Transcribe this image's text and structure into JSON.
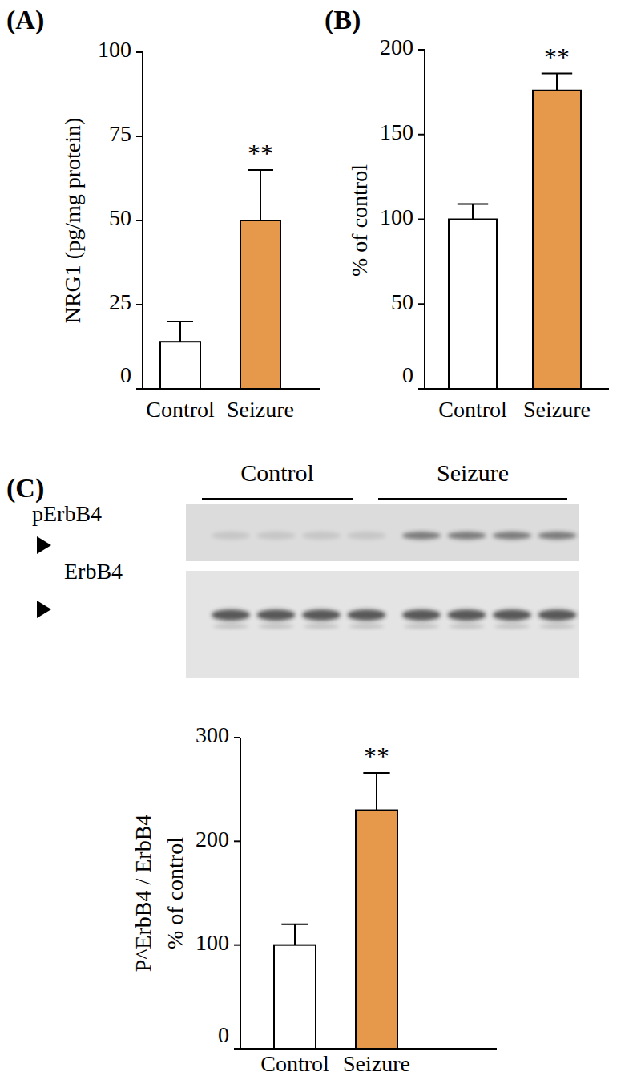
{
  "chart_data": [
    {
      "type": "bar",
      "title": "(A)",
      "y_label": "NRG1 (pg/mg protein)",
      "categories": [
        "Control",
        "Seizure"
      ],
      "values": [
        14,
        50
      ],
      "errors": [
        6,
        15
      ],
      "colors": [
        "#ffffff",
        "#e6994a"
      ],
      "ylim": [
        0,
        100
      ],
      "yticks": [
        0,
        25,
        50,
        75,
        100
      ],
      "annotations": [
        {
          "category": "Seizure",
          "text": "**"
        }
      ]
    },
    {
      "type": "bar",
      "title": "(B)",
      "y_label": "% of control",
      "categories": [
        "Control",
        "Seizure"
      ],
      "values": [
        100,
        176
      ],
      "errors": [
        9,
        10
      ],
      "colors": [
        "#ffffff",
        "#e6994a"
      ],
      "ylim": [
        0,
        200
      ],
      "yticks": [
        0,
        50,
        100,
        150,
        200
      ],
      "annotations": [
        {
          "category": "Seizure",
          "text": "**"
        }
      ]
    },
    {
      "type": "bar",
      "title": "(C)",
      "y_label": [
        "P^ErbB4 / ErbB4",
        "% of control"
      ],
      "categories": [
        "Control",
        "Seizure"
      ],
      "values": [
        100,
        230
      ],
      "errors": [
        20,
        36
      ],
      "colors": [
        "#ffffff",
        "#e6994a"
      ],
      "ylim": [
        0,
        300
      ],
      "yticks": [
        0,
        100,
        200,
        300
      ],
      "annotations": [
        {
          "category": "Seizure",
          "text": "**"
        }
      ]
    }
  ],
  "blot": {
    "groups": [
      "Control",
      "Seizure"
    ],
    "rows": [
      "pErbB4",
      "ErbB4"
    ]
  }
}
